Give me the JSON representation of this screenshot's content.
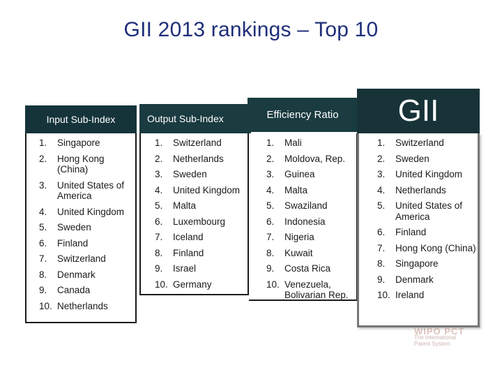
{
  "title": "GII 2013 rankings – Top 10",
  "columns": {
    "input": {
      "header": "Input Sub-Index",
      "items": [
        {
          "num": "1.",
          "name": "Singapore"
        },
        {
          "num": "2.",
          "name": "Hong Kong (China)"
        },
        {
          "num": "3.",
          "name": "United States of America"
        },
        {
          "num": "4.",
          "name": "United Kingdom"
        },
        {
          "num": "5.",
          "name": "Sweden"
        },
        {
          "num": "6.",
          "name": "Finland"
        },
        {
          "num": "7.",
          "name": "Switzerland"
        },
        {
          "num": "8.",
          "name": "Denmark"
        },
        {
          "num": "9.",
          "name": "Canada"
        },
        {
          "num": "10.",
          "name": "Netherlands"
        }
      ]
    },
    "output": {
      "header": "Output Sub-Index",
      "items": [
        {
          "num": "1.",
          "name": "Switzerland"
        },
        {
          "num": "2.",
          "name": "Netherlands"
        },
        {
          "num": "3.",
          "name": "Sweden"
        },
        {
          "num": "4.",
          "name": "United Kingdom"
        },
        {
          "num": "5.",
          "name": "Malta"
        },
        {
          "num": "6.",
          "name": "Luxembourg"
        },
        {
          "num": "7.",
          "name": "Iceland"
        },
        {
          "num": "8.",
          "name": "Finland"
        },
        {
          "num": "9.",
          "name": "Israel"
        },
        {
          "num": "10.",
          "name": "Germany"
        }
      ]
    },
    "efficiency": {
      "header": "Efficiency Ratio",
      "items": [
        {
          "num": "1.",
          "name": "Mali"
        },
        {
          "num": "2.",
          "name": "Moldova, Rep."
        },
        {
          "num": "3.",
          "name": "Guinea"
        },
        {
          "num": "4.",
          "name": "Malta"
        },
        {
          "num": "5.",
          "name": "Swaziland"
        },
        {
          "num": "6.",
          "name": "Indonesia"
        },
        {
          "num": "7.",
          "name": "Nigeria"
        },
        {
          "num": "8.",
          "name": "Kuwait"
        },
        {
          "num": "9.",
          "name": "Costa Rica"
        },
        {
          "num": "10.",
          "name": "Venezuela, Bolivarian Rep."
        }
      ]
    },
    "gii": {
      "header": "GII",
      "items": [
        {
          "num": "1.",
          "name": "Switzerland"
        },
        {
          "num": "2.",
          "name": "Sweden"
        },
        {
          "num": "3.",
          "name": "United Kingdom"
        },
        {
          "num": "4.",
          "name": "Netherlands"
        },
        {
          "num": "5.",
          "name": "United States of America"
        },
        {
          "num": "6.",
          "name": "Finland"
        },
        {
          "num": "7.",
          "name": "Hong Kong (China)"
        },
        {
          "num": "8.",
          "name": "Singapore"
        },
        {
          "num": "9.",
          "name": "Denmark"
        },
        {
          "num": "10.",
          "name": "Ireland"
        }
      ]
    }
  },
  "watermark": {
    "logo": "WIPO PCT",
    "line1": "The International",
    "line2": "Patent System"
  },
  "colors": {
    "title": "#1f2f7a",
    "header_bg": "#173338",
    "header_text": "#ffffff"
  }
}
